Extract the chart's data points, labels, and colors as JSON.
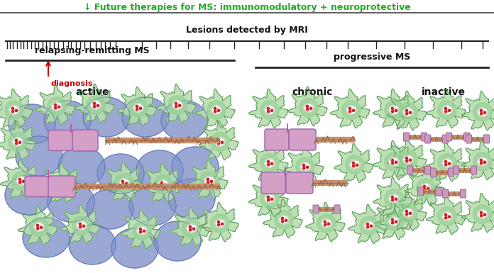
{
  "title_text": "↓ Future therapies for MS: immunomodulatory + neuroprotective",
  "title_color": "#22aa22",
  "mri_label": "Lesions detected by MRI",
  "rr_label": "relapsing-remitting MS",
  "prog_label": "progressive MS",
  "diagnosis_label": "diagnosis",
  "active_label": "active",
  "chronic_label": "chronic",
  "inactive_label": "inactive",
  "bg_color": "#ffffff",
  "arrow_color": "#cc0000",
  "green_body_color": "#b8ddb0",
  "green_center_color": "#88cc88",
  "green_edge_color": "#559955",
  "nucleus_outer_color": "#ffffff",
  "nucleus_dot_color": "#cc2222",
  "blue_cell_color": "#8899cc",
  "blue_cell_edge": "#6677bb",
  "myelin_color": "#d4a0c8",
  "myelin_edge": "#9966aa",
  "axon_color": "#c8906e",
  "axon_edge": "#b07050",
  "connector_color": "#cc44aa",
  "frag_color": "#c8a070",
  "frag_edge": "#9977550"
}
